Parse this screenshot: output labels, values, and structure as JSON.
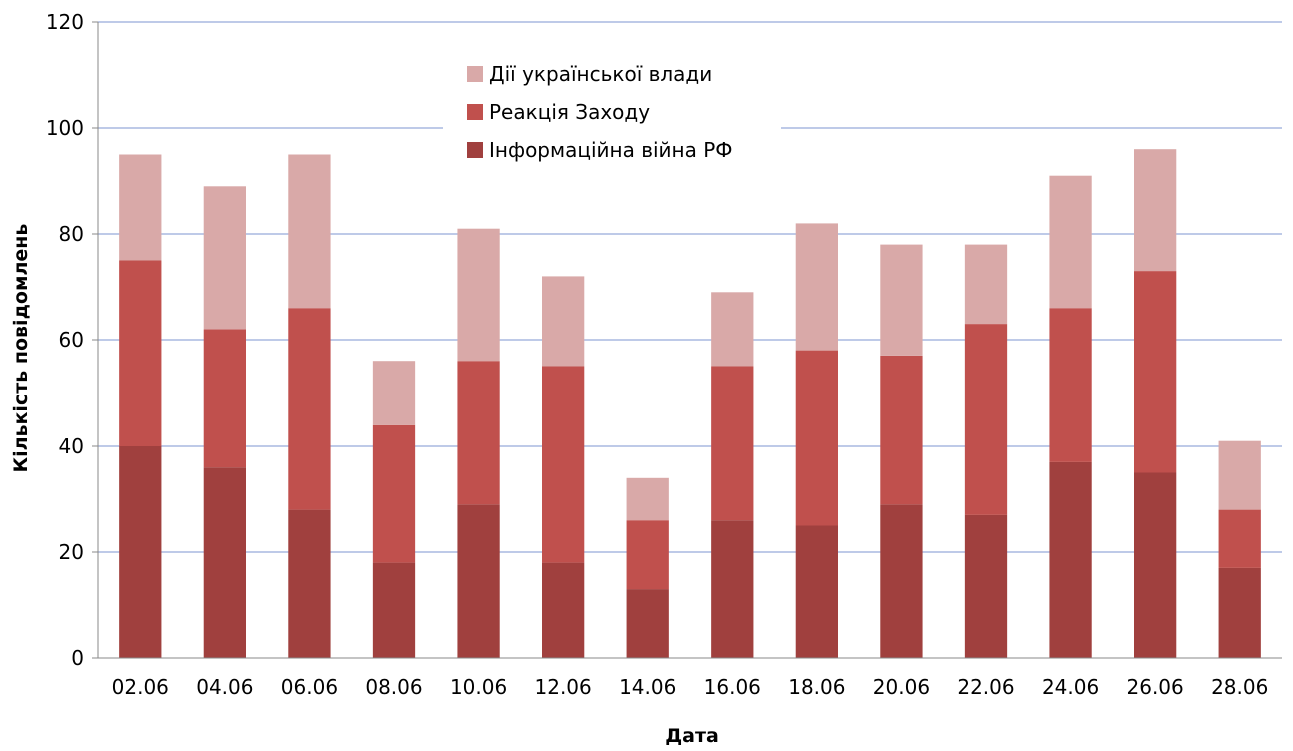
{
  "chart_data": {
    "type": "bar",
    "stacked": true,
    "title": "",
    "xlabel": "Дата",
    "ylabel": "Кількість повідомлень",
    "ylim": [
      0,
      120
    ],
    "yticks": [
      0,
      20,
      40,
      60,
      80,
      100,
      120
    ],
    "grid": true,
    "legend_position": "top-center",
    "categories": [
      "02.06",
      "04.06",
      "06.06",
      "08.06",
      "10.06",
      "12.06",
      "14.06",
      "16.06",
      "18.06",
      "20.06",
      "22.06",
      "24.06",
      "26.06",
      "28.06"
    ],
    "series": [
      {
        "name": "Інформаційна війна РФ",
        "color": "#a0403e",
        "values": [
          40,
          36,
          28,
          18,
          29,
          18,
          13,
          26,
          25,
          29,
          27,
          37,
          35,
          17
        ]
      },
      {
        "name": "Реакція Заходу",
        "color": "#c0504d",
        "values": [
          35,
          26,
          38,
          26,
          27,
          37,
          13,
          29,
          33,
          28,
          36,
          29,
          38,
          11
        ]
      },
      {
        "name": "Дії української влади",
        "color": "#d9a9a8",
        "values": [
          20,
          27,
          29,
          12,
          25,
          17,
          8,
          14,
          24,
          21,
          15,
          25,
          23,
          13
        ]
      }
    ],
    "legend_order": [
      "Дії української влади",
      "Реакція Заходу",
      "Інформаційна війна РФ"
    ],
    "colors": {
      "gridline": "#a9b9e0",
      "axis": "#888888",
      "text": "#000000"
    }
  }
}
